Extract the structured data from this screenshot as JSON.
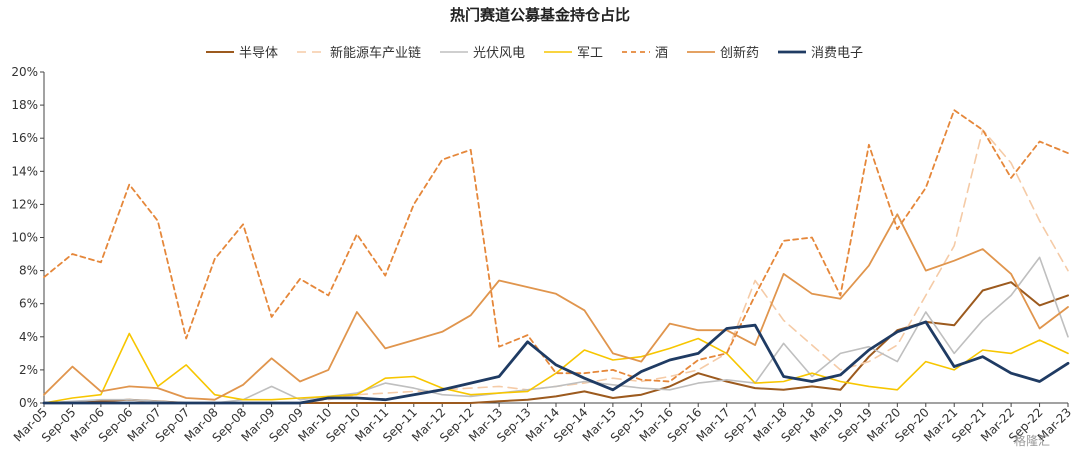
{
  "chart_data": {
    "type": "line",
    "title": "热门赛道公募基金持仓占比",
    "xlabel": "",
    "ylabel": "",
    "ylim": [
      0,
      20
    ],
    "yticks": [
      0,
      2,
      4,
      6,
      8,
      10,
      12,
      14,
      16,
      18,
      20
    ],
    "ytick_labels": [
      "0%",
      "2%",
      "4%",
      "6%",
      "8%",
      "10%",
      "12%",
      "14%",
      "16%",
      "18%",
      "20%"
    ],
    "grid": false,
    "legend": "top",
    "x": [
      "Mar-05",
      "Sep-05",
      "Mar-06",
      "Sep-06",
      "Mar-07",
      "Sep-07",
      "Mar-08",
      "Sep-08",
      "Mar-09",
      "Sep-09",
      "Mar-10",
      "Sep-10",
      "Mar-11",
      "Sep-11",
      "Mar-12",
      "Sep-12",
      "Mar-13",
      "Sep-13",
      "Mar-14",
      "Sep-14",
      "Mar-15",
      "Sep-15",
      "Mar-16",
      "Sep-16",
      "Mar-17",
      "Sep-17",
      "Mar-18",
      "Sep-18",
      "Mar-19",
      "Sep-19",
      "Mar-20",
      "Sep-20",
      "Mar-21",
      "Sep-21",
      "Mar-22",
      "Sep-22",
      "Mar-23"
    ],
    "series": [
      {
        "name": "半导体",
        "color": "#9c5a1e",
        "dash": "solid",
        "width": 2,
        "values": [
          0,
          0,
          0.1,
          0.2,
          0.1,
          0,
          0,
          0,
          0,
          0,
          0,
          0,
          0,
          0,
          0,
          0,
          0.1,
          0.2,
          0.4,
          0.7,
          0.3,
          0.5,
          1.0,
          1.8,
          1.3,
          0.9,
          0.8,
          1.0,
          0.8,
          2.8,
          4.4,
          4.9,
          4.7,
          6.8,
          7.3,
          5.9,
          6.5
        ]
      },
      {
        "name": "新能源车产业链",
        "color": "#f5cba7",
        "dash": "9,6",
        "width": 1.6,
        "values": [
          0,
          0,
          0,
          0,
          0,
          0,
          0,
          0,
          0,
          0,
          0.2,
          0.5,
          0.6,
          0.7,
          0.8,
          0.9,
          1.0,
          0.8,
          1.0,
          1.2,
          1.5,
          1.3,
          1.6,
          2.0,
          3.0,
          7.4,
          5.0,
          3.5,
          2.0,
          2.5,
          3.5,
          6.5,
          9.5,
          16.5,
          14.5,
          11.0,
          8.0
        ]
      },
      {
        "name": "光伏风电",
        "color": "#bfbfbf",
        "dash": "solid",
        "width": 1.6,
        "values": [
          0,
          0.1,
          0.2,
          0.2,
          0.1,
          0,
          0,
          0.2,
          1.0,
          0.2,
          0.4,
          0.6,
          1.2,
          0.9,
          0.5,
          0.4,
          0.6,
          0.8,
          1.0,
          1.3,
          1.1,
          0.9,
          0.8,
          1.2,
          1.4,
          1.2,
          3.6,
          1.6,
          3.0,
          3.4,
          2.5,
          5.5,
          3.0,
          5.0,
          6.5,
          8.8,
          4.0
        ]
      },
      {
        "name": "军工",
        "color": "#f7c600",
        "dash": "solid",
        "width": 1.6,
        "values": [
          0,
          0.3,
          0.5,
          4.2,
          1.0,
          2.3,
          0.5,
          0.2,
          0.2,
          0.3,
          0.4,
          0.5,
          1.5,
          1.6,
          0.9,
          0.5,
          0.6,
          0.7,
          1.8,
          3.2,
          2.6,
          2.8,
          3.3,
          3.9,
          3.0,
          1.2,
          1.3,
          1.8,
          1.3,
          1.0,
          0.8,
          2.5,
          2.0,
          3.2,
          3.0,
          3.8,
          3.0
        ]
      },
      {
        "name": "酒",
        "color": "#e5873a",
        "dash": "5,4",
        "width": 1.8,
        "values": [
          7.6,
          9.0,
          8.5,
          13.2,
          11.0,
          3.9,
          8.7,
          10.8,
          5.2,
          7.5,
          6.5,
          10.2,
          7.7,
          12.0,
          14.7,
          15.3,
          3.4,
          4.1,
          1.8,
          1.8,
          2.0,
          1.4,
          1.3,
          2.6,
          3.0,
          6.5,
          9.8,
          10.0,
          6.5,
          15.6,
          10.5,
          13.0,
          17.7,
          16.5,
          13.6,
          15.8,
          15.1
        ]
      },
      {
        "name": "创新药",
        "color": "#e0954d",
        "dash": "solid",
        "width": 1.8,
        "values": [
          0.5,
          2.2,
          0.7,
          1.0,
          0.9,
          0.3,
          0.2,
          1.1,
          2.7,
          1.3,
          2.0,
          5.5,
          3.3,
          3.8,
          4.3,
          5.3,
          7.4,
          7.0,
          6.6,
          5.6,
          3.0,
          2.5,
          4.8,
          4.4,
          4.4,
          3.5,
          7.8,
          6.6,
          6.3,
          8.3,
          11.4,
          8.0,
          8.6,
          9.3,
          7.8,
          4.5,
          5.8
        ]
      },
      {
        "name": "消费电子",
        "color": "#1f3b63",
        "dash": "solid",
        "width": 2.8,
        "values": [
          0,
          0,
          0,
          0,
          0,
          0,
          0,
          0,
          0,
          0,
          0.3,
          0.3,
          0.2,
          0.5,
          0.8,
          1.2,
          1.6,
          3.7,
          2.3,
          1.5,
          0.8,
          1.9,
          2.6,
          3.0,
          4.5,
          4.7,
          1.6,
          1.3,
          1.7,
          3.2,
          4.3,
          4.9,
          2.2,
          2.8,
          1.8,
          1.3,
          2.4
        ]
      }
    ]
  },
  "watermark": "格隆汇"
}
